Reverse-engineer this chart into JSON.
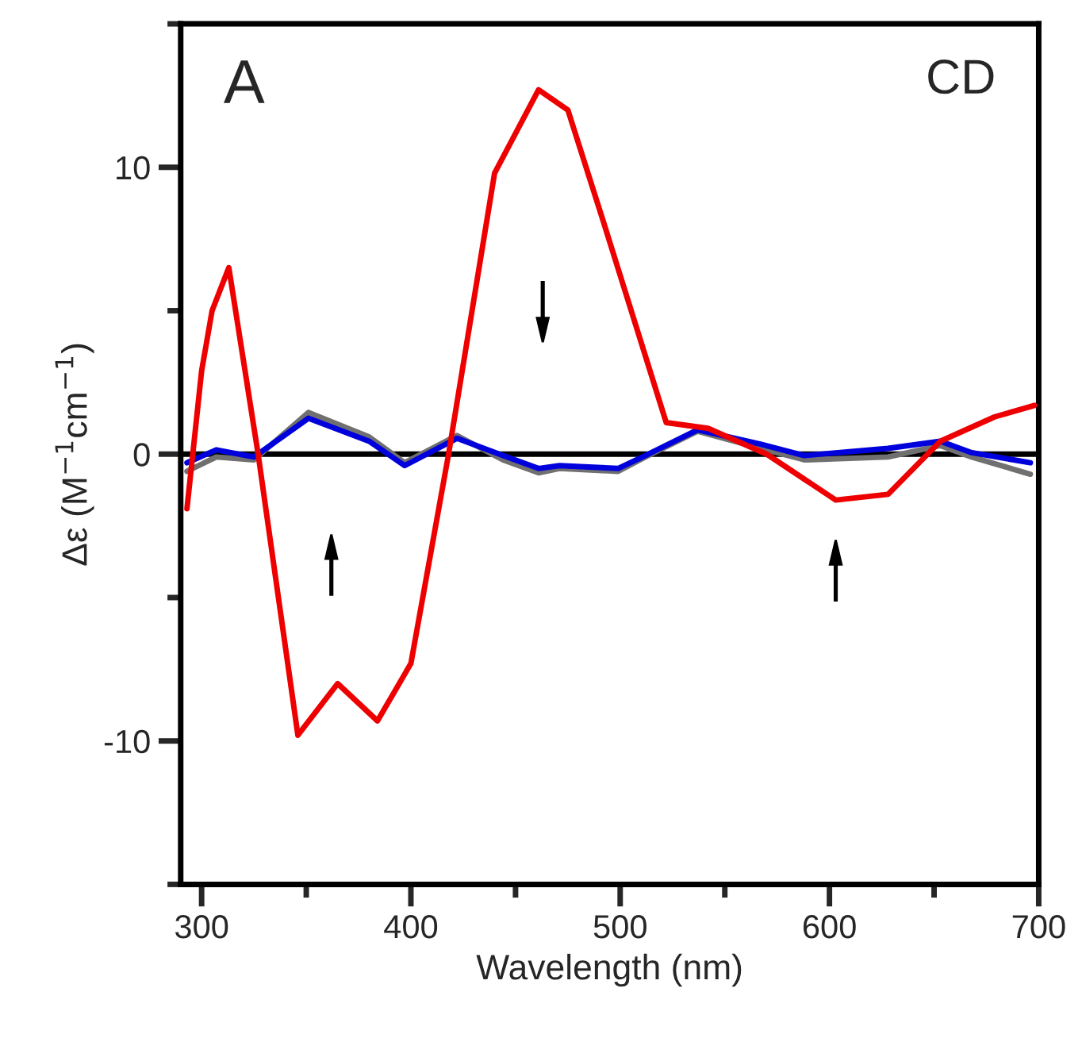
{
  "chart_data": {
    "type": "line",
    "xlabel": "Wavelength (nm)",
    "ylabel": "Δε (M$^{−1}$cm$^{−1}$)",
    "annotations": [
      "A",
      "CD"
    ],
    "xlim": [
      290,
      700
    ],
    "ylim": [
      -15,
      15
    ],
    "xticks": [
      300,
      {
        "value": 350,
        "label": null
      },
      400,
      {
        "value": 450,
        "label": null
      },
      500,
      {
        "value": 550,
        "label": null
      },
      600,
      {
        "value": 650,
        "label": null
      },
      700
    ],
    "yticks": [
      {
        "value": -15,
        "label": null
      },
      -10,
      {
        "value": -5,
        "label": null
      },
      0,
      {
        "value": 5,
        "label": null
      },
      10,
      {
        "value": 15,
        "label": null
      }
    ],
    "grid": false,
    "legend": false,
    "marker": "none",
    "line_style": "solid",
    "ref_lines": [
      {
        "axis": "y",
        "value": 0,
        "label": null,
        "color": "#000000"
      }
    ],
    "series": [
      {
        "color": "#707070",
        "x": [
          293,
          307,
          325,
          351,
          380,
          397,
          422,
          444,
          461,
          471,
          499,
          512,
          537,
          567,
          588,
          628,
          653,
          668,
          696
        ],
        "values": [
          -0.6,
          -0.1,
          -0.2,
          1.45,
          0.6,
          -0.3,
          0.65,
          -0.2,
          -0.65,
          -0.5,
          -0.6,
          -0.1,
          0.8,
          0.2,
          -0.2,
          -0.1,
          0.3,
          -0.1,
          -0.7
        ]
      },
      {
        "color": "#0000dd",
        "x": [
          293,
          307,
          325,
          351,
          380,
          397,
          422,
          444,
          461,
          471,
          499,
          512,
          537,
          567,
          588,
          628,
          653,
          668,
          696
        ],
        "values": [
          -0.3,
          0.15,
          -0.1,
          1.25,
          0.45,
          -0.4,
          0.55,
          -0.05,
          -0.5,
          -0.4,
          -0.5,
          -0.05,
          0.85,
          0.35,
          -0.05,
          0.2,
          0.45,
          0.05,
          -0.3
        ]
      },
      {
        "color": "#ee0000",
        "x": [
          293,
          300,
          305,
          313,
          327,
          346,
          365,
          384,
          400,
          418,
          440,
          461,
          475,
          492,
          522,
          542,
          570,
          603,
          628,
          653,
          679,
          698
        ],
        "values": [
          -1.9,
          2.9,
          5.0,
          6.5,
          0.0,
          -9.8,
          -8.0,
          -9.3,
          -7.3,
          0.0,
          9.8,
          12.7,
          12.0,
          8.1,
          1.1,
          0.9,
          0.0,
          -1.6,
          -1.4,
          0.45,
          1.3,
          1.7
        ]
      }
    ]
  }
}
